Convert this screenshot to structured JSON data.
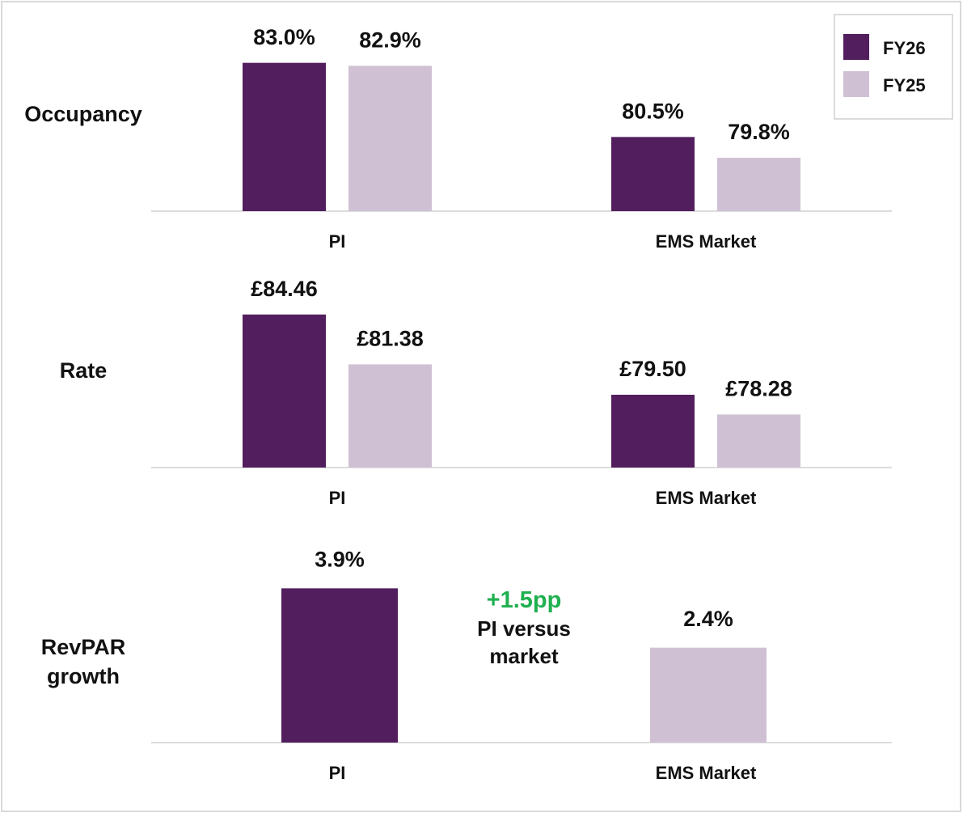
{
  "chart_data": [
    {
      "type": "bar",
      "title": "Occupancy",
      "categories": [
        "PI",
        "EMS Market"
      ],
      "series": [
        {
          "name": "FY26",
          "color": "#521e5e",
          "values": [
            83.0,
            80.5
          ],
          "value_labels": [
            "83.0%",
            "80.5%"
          ]
        },
        {
          "name": "FY25",
          "color": "#cfc1d3",
          "values": [
            82.9,
            79.8
          ],
          "value_labels": [
            "82.9%",
            "79.8%"
          ]
        }
      ],
      "ylim": [
        78,
        84
      ],
      "legend": "top-right"
    },
    {
      "type": "bar",
      "title": "Rate",
      "categories": [
        "PI",
        "EMS Market"
      ],
      "series": [
        {
          "name": "FY26",
          "color": "#521e5e",
          "values": [
            84.46,
            79.5
          ],
          "value_labels": [
            "£84.46",
            "£79.50"
          ]
        },
        {
          "name": "FY25",
          "color": "#cfc1d3",
          "values": [
            81.38,
            78.28
          ],
          "value_labels": [
            "£81.38",
            "£78.28"
          ]
        }
      ],
      "ylim": [
        75,
        86
      ]
    },
    {
      "type": "bar",
      "title": "RevPAR growth",
      "categories": [
        "PI",
        "EMS Market"
      ],
      "values": [
        3.9,
        2.4
      ],
      "value_labels": [
        "3.9%",
        "2.4%"
      ],
      "colors": [
        "#521e5e",
        "#cfc1d3"
      ],
      "ylim": [
        0,
        4.5
      ],
      "annotation": {
        "title": "+1.5pp",
        "text": "PI versus market",
        "color": "#1fb04f"
      }
    }
  ]
}
